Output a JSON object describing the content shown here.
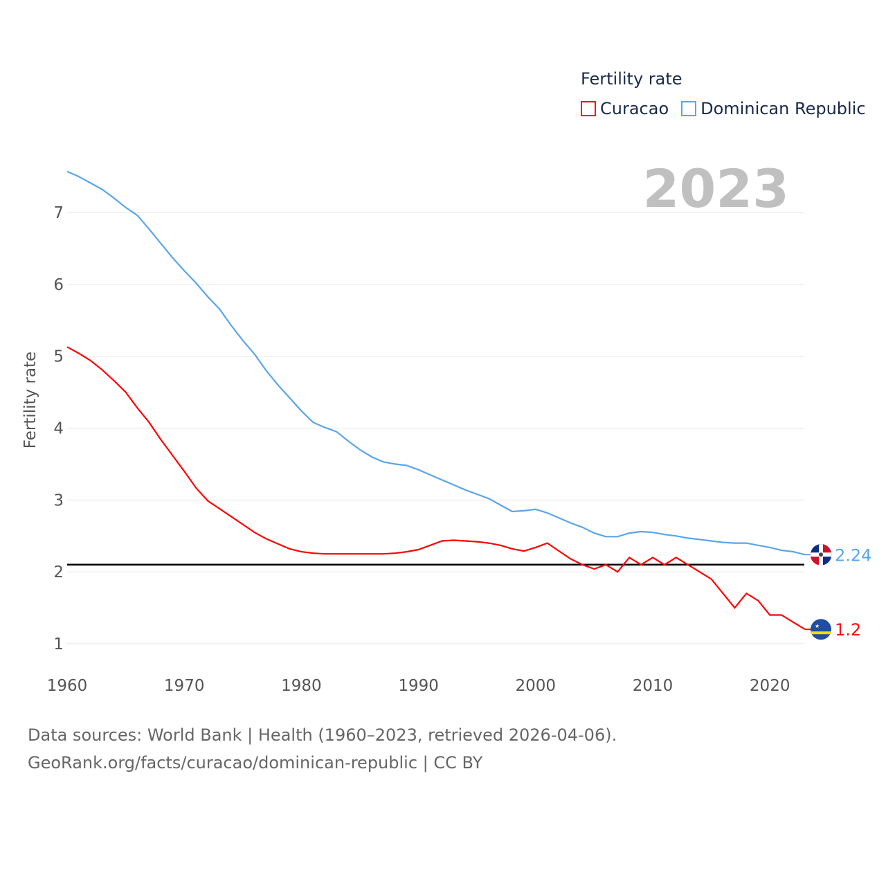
{
  "chart_data": {
    "type": "line",
    "title": "",
    "ylabel": "Fertility rate",
    "xlabel": "",
    "legend_title": "Fertility rate",
    "legend_position": "top-right",
    "year_label": "2023",
    "xlim": [
      1960,
      2023
    ],
    "ylim": [
      0.6,
      7.6
    ],
    "x_ticks": [
      1960,
      1970,
      1980,
      1990,
      2000,
      2010,
      2020
    ],
    "y_ticks": [
      1,
      2,
      3,
      4,
      5,
      6,
      7
    ],
    "grid": true,
    "reference_line": 2.1,
    "x": [
      1960,
      1961,
      1962,
      1963,
      1964,
      1965,
      1966,
      1967,
      1968,
      1969,
      1970,
      1971,
      1972,
      1973,
      1974,
      1975,
      1976,
      1977,
      1978,
      1979,
      1980,
      1981,
      1982,
      1983,
      1984,
      1985,
      1986,
      1987,
      1988,
      1989,
      1990,
      1991,
      1992,
      1993,
      1994,
      1995,
      1996,
      1997,
      1998,
      1999,
      2000,
      2001,
      2002,
      2003,
      2004,
      2005,
      2006,
      2007,
      2008,
      2009,
      2010,
      2011,
      2012,
      2013,
      2014,
      2015,
      2016,
      2017,
      2018,
      2019,
      2020,
      2021,
      2022,
      2023
    ],
    "series": [
      {
        "name": "Curacao",
        "color": "#ff0000",
        "end_label": "1.2",
        "values": [
          5.13,
          5.04,
          4.94,
          4.81,
          4.66,
          4.5,
          4.28,
          4.08,
          3.84,
          3.62,
          3.4,
          3.17,
          2.99,
          2.88,
          2.77,
          2.66,
          2.55,
          2.46,
          2.39,
          2.32,
          2.28,
          2.26,
          2.25,
          2.25,
          2.25,
          2.25,
          2.25,
          2.25,
          2.26,
          2.28,
          2.31,
          2.37,
          2.43,
          2.44,
          2.43,
          2.42,
          2.4,
          2.37,
          2.32,
          2.29,
          2.34,
          2.4,
          2.29,
          2.18,
          2.1,
          2.04,
          2.1,
          2.0,
          2.2,
          2.1,
          2.2,
          2.1,
          2.2,
          2.1,
          2.0,
          1.9,
          1.7,
          1.5,
          1.7,
          1.6,
          1.4,
          1.4,
          1.3,
          1.2
        ]
      },
      {
        "name": "Dominican Republic",
        "color": "#5aa5ea",
        "end_label": "2.24",
        "values": [
          7.57,
          7.5,
          7.41,
          7.32,
          7.2,
          7.07,
          6.96,
          6.77,
          6.57,
          6.37,
          6.19,
          6.02,
          5.83,
          5.66,
          5.43,
          5.22,
          5.03,
          4.8,
          4.6,
          4.42,
          4.24,
          4.08,
          4.01,
          3.95,
          3.82,
          3.7,
          3.6,
          3.53,
          3.5,
          3.48,
          3.42,
          3.35,
          3.28,
          3.21,
          3.14,
          3.08,
          3.02,
          2.93,
          2.84,
          2.85,
          2.87,
          2.82,
          2.75,
          2.68,
          2.62,
          2.54,
          2.49,
          2.49,
          2.54,
          2.56,
          2.55,
          2.52,
          2.5,
          2.47,
          2.45,
          2.43,
          2.41,
          2.4,
          2.4,
          2.37,
          2.34,
          2.3,
          2.28,
          2.24
        ]
      }
    ]
  },
  "footer": {
    "line1": "Data sources: World Bank | Health (1960–2023, retrieved 2026-04-06).",
    "line2": "GeoRank.org/facts/curacao/dominican-republic | CC BY"
  }
}
